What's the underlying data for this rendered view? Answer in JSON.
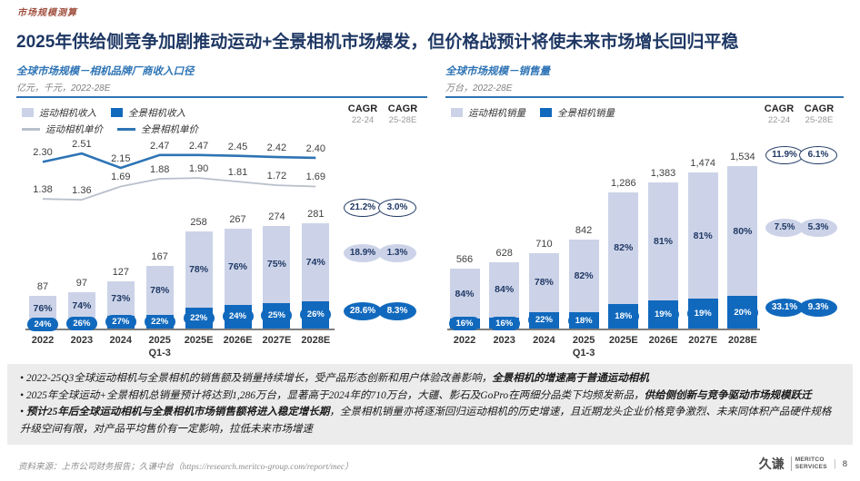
{
  "eyebrow": "市场规模测算",
  "title": "2025年供给侧竞争加剧推动运动+全景相机市场爆发，但价格战预计将使未来市场增长回归平稳",
  "colors": {
    "action_bar": "#ccd3e8",
    "pano_bar": "#1169bd",
    "action_price_line": "#b9c0cb",
    "pano_price_line": "#2e74b5",
    "title_navy": "#1f3864",
    "panel_title_blue": "#2e74b5",
    "eyebrow_red": "#a0503f"
  },
  "chart_data": [
    {
      "type": "bar",
      "title": "全球市场规模－相机品牌厂商收入口径",
      "subtitle": "亿元，千元，2022-28E",
      "categories": [
        "2022",
        "2023",
        "2024",
        "2025\nQ1-3",
        "2025E",
        "2026E",
        "2027E",
        "2028E"
      ],
      "totals": [
        "87",
        "97",
        "127",
        "167",
        "258",
        "267",
        "274",
        "281"
      ],
      "series": [
        {
          "name": "运动相机收入",
          "share_pct": [
            "76%",
            "74%",
            "73%",
            "78%",
            "78%",
            "76%",
            "75%",
            "74%"
          ]
        },
        {
          "name": "全景相机收入",
          "share_pct": [
            "24%",
            "26%",
            "27%",
            "22%",
            "22%",
            "24%",
            "25%",
            "26%"
          ]
        }
      ],
      "lines": [
        {
          "name": "运动相机单价",
          "values": [
            "1.38",
            "1.36",
            "1.69",
            "1.88",
            "1.90",
            "1.81",
            "1.72",
            "1.69"
          ]
        },
        {
          "name": "全景相机单价",
          "values": [
            "2.30",
            "2.51",
            "2.15",
            "2.47",
            "2.47",
            "2.45",
            "2.42",
            "2.40"
          ]
        }
      ],
      "legend_rows": [
        [
          {
            "label": "运动相机收入",
            "swatch": "light-square"
          },
          {
            "label": "全景相机收入",
            "swatch": "blue-square"
          }
        ],
        [
          {
            "label": "运动相机单价",
            "swatch": "gray-line"
          },
          {
            "label": "全景相机单价",
            "swatch": "blue-line"
          }
        ]
      ],
      "cagr": {
        "headers": [
          "CAGR",
          "CAGR"
        ],
        "subheaders": [
          "22-24",
          "25-28E"
        ],
        "rows": [
          {
            "style": "outline",
            "values": [
              "21.2%",
              "3.0%"
            ]
          },
          {
            "style": "fill-light",
            "values": [
              "18.9%",
              "1.3%"
            ]
          },
          {
            "style": "fill-blue",
            "values": [
              "28.6%",
              "8.3%"
            ]
          }
        ]
      },
      "ylim": [
        0,
        281
      ],
      "grid": false,
      "legend_position": "top-left"
    },
    {
      "type": "bar",
      "title": "全球市场规模－销售量",
      "subtitle": "万台，2022-28E",
      "categories": [
        "2022",
        "2023",
        "2024",
        "2025\nQ1-3",
        "2025E",
        "2026E",
        "2027E",
        "2028E"
      ],
      "totals": [
        "566",
        "628",
        "710",
        "842",
        "1,286",
        "1,383",
        "1,474",
        "1,534"
      ],
      "series": [
        {
          "name": "运动相机销量",
          "share_pct": [
            "84%",
            "84%",
            "78%",
            "82%",
            "82%",
            "81%",
            "81%",
            "80%"
          ]
        },
        {
          "name": "全景相机销量",
          "share_pct": [
            "16%",
            "16%",
            "22%",
            "18%",
            "18%",
            "19%",
            "19%",
            "20%"
          ]
        }
      ],
      "lines": [],
      "legend_rows": [
        [
          {
            "label": "运动相机销量",
            "swatch": "light-square"
          },
          {
            "label": "全景相机销量",
            "swatch": "blue-square"
          }
        ]
      ],
      "cagr": {
        "headers": [
          "CAGR",
          "CAGR"
        ],
        "subheaders": [
          "22-24",
          "25-28E"
        ],
        "rows": [
          {
            "style": "outline",
            "values": [
              "11.9%",
              "6.1%"
            ]
          },
          {
            "style": "fill-light",
            "values": [
              "7.5%",
              "5.3%"
            ]
          },
          {
            "style": "fill-blue",
            "values": [
              "33.1%",
              "9.3%"
            ]
          }
        ]
      },
      "ylim": [
        0,
        1534
      ],
      "grid": false,
      "legend_position": "top-left"
    }
  ],
  "bullets": [
    [
      {
        "t": "2022-25Q3全球运动相机与全景相机的销售额及销量持续增长，受产品形态创新和用户体验改善影响，",
        "b": false
      },
      {
        "t": "全景相机的增速高于普通运动相机",
        "b": true
      }
    ],
    [
      {
        "t": "2025年全球运动+全景相机总销量预计将达到1,286万台，显著高于2024年的710万台，大疆、影石及GoPro在两细分品类下均频发新品，",
        "b": false
      },
      {
        "t": "供给侧创新与竞争驱动市场规模跃迁",
        "b": true
      }
    ],
    [
      {
        "t": "预计25年后全球运动相机与全景相机市场销售额将进入稳定增长期",
        "b": true
      },
      {
        "t": "，全景相机销量亦将逐渐回归运动相机的历史增速，且近期龙头企业价格竞争激烈、未来同体积产品硬件规格升级空间有限，对产品平均售价有一定影响，拉低未来市场增速",
        "b": false
      }
    ]
  ],
  "footer": {
    "source": "资料来源：上市公司财务报告；久谦中台（https://research.meritco-group.com/report/mec）",
    "logo_cn": "久谦",
    "logo_en_line1": "MERITCO",
    "logo_en_line2": "SERVICES",
    "page": "8"
  }
}
